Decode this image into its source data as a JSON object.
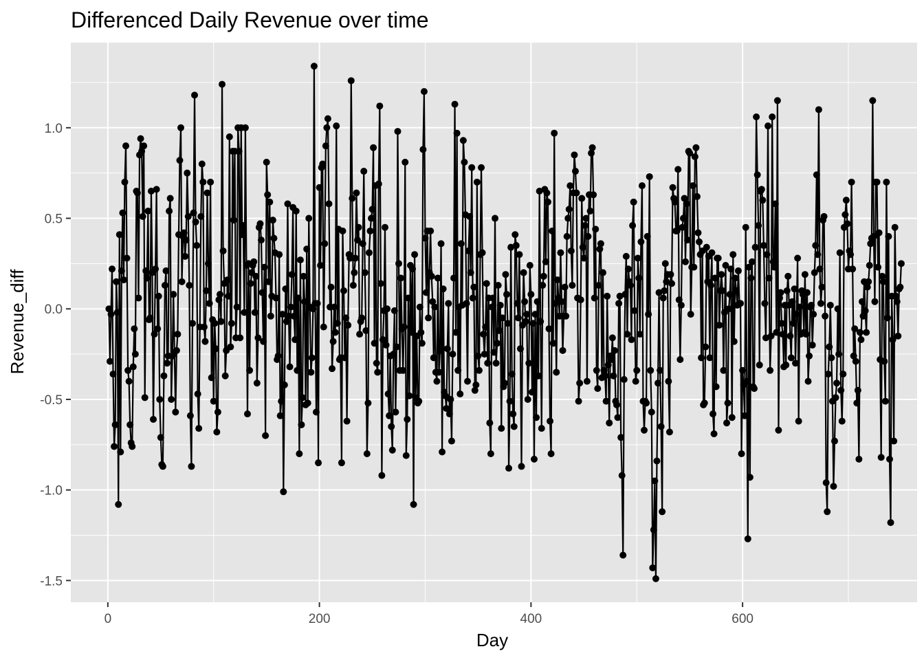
{
  "chart_data": {
    "type": "line",
    "title": "Differenced Daily Revenue over time",
    "xlabel": "Day",
    "ylabel": "Revenue_diff",
    "xlim": [
      -35,
      765
    ],
    "ylim": [
      -1.62,
      1.47
    ],
    "x_ticks": [
      0,
      200,
      400,
      600
    ],
    "x_tick_labels": [
      "0",
      "200",
      "400",
      "600"
    ],
    "y_ticks": [
      -1.5,
      -1.0,
      -0.5,
      0.0,
      0.5,
      1.0
    ],
    "y_tick_labels": [
      "-1.5",
      "-1.0",
      "-0.5",
      "0.0",
      "0.5",
      "1.0"
    ],
    "grid": true,
    "points_shown": true,
    "colors": {
      "panel": "#e5e5e5",
      "grid": "#ffffff",
      "series": "#000000"
    },
    "series": [
      {
        "x_start": 1,
        "x_step": 1,
        "values": [
          0.0,
          -0.29,
          -0.03,
          0.22,
          -0.36,
          -0.76,
          -0.64,
          0.15,
          -0.02,
          -1.08,
          0.41,
          -0.79,
          0.21,
          0.53,
          0.16,
          0.7,
          0.9,
          0.28,
          -0.34,
          -0.4,
          -0.64,
          -0.74,
          -0.76,
          -0.32,
          -0.11,
          -0.25,
          0.65,
          0.64,
          0.06,
          0.85,
          0.94,
          0.87,
          0.51,
          0.9,
          -0.49,
          0.21,
          0.17,
          0.54,
          -0.06,
          -0.05,
          0.65,
          0.2,
          -0.61,
          -0.14,
          0.22,
          0.66,
          -0.11,
          0.07,
          -0.5,
          -0.71,
          -0.86,
          -0.87,
          -0.37,
          0.13,
          0.21,
          -0.3,
          -0.26,
          0.54,
          0.61,
          -0.5,
          -0.26,
          0.08,
          -0.24,
          -0.57,
          -0.23,
          -0.14,
          0.41,
          0.82,
          1.0,
          0.15,
          0.4,
          0.42,
          0.29,
          0.38,
          0.75,
          0.51,
          0.13,
          -0.59,
          -0.87,
          -0.08,
          0.53,
          1.18,
          0.48,
          0.35,
          -0.47,
          -0.66,
          -0.1,
          0.51,
          0.8,
          0.7,
          -0.1,
          -0.18,
          0.1,
          0.64,
          0.25,
          0.03,
          0.7,
          -0.38,
          -0.06,
          -0.51,
          -0.08,
          -0.22,
          -0.68,
          -0.57,
          0.05,
          0.08,
          -0.07,
          1.24,
          0.32,
          0.14,
          -0.37,
          -0.23,
          0.16,
          0.07,
          0.95,
          -0.21,
          -0.08,
          0.87,
          0.49,
          0.87,
          -0.16,
          0.01,
          1.0,
          0.87,
          -0.16,
          1.0,
          0.41,
          0.46,
          -0.02,
          1.0,
          0.24,
          -0.58,
          0.25,
          -0.34,
          0.14,
          0.2,
          0.24,
          0.26,
          -0.02,
          0.18,
          -0.41,
          -0.16,
          0.45,
          0.47,
          0.38,
          0.09,
          -0.18,
          0.23,
          -0.7,
          0.81,
          0.63,
          0.15,
          0.59,
          -0.04,
          0.07,
          0.49,
          0.39,
          0.31,
          0.06,
          -0.28,
          -0.26,
          0.3,
          -0.59,
          -0.51,
          -0.03,
          -1.01,
          -0.42,
          0.11,
          -0.07,
          0.58,
          -0.04,
          -0.32,
          0.01,
          0.19,
          0.56,
          -0.04,
          -0.17,
          0.54,
          -0.34,
          0.06,
          -0.8,
          0.27,
          -0.64,
          -0.49,
          0.18,
          0.04,
          -0.53,
          0.33,
          -0.52,
          0.5,
          0.01,
          -0.35,
          -0.27,
          0.0,
          1.34,
          0.03,
          -0.57,
          0.03,
          -0.85,
          0.67,
          0.24,
          0.78,
          0.8,
          -0.1,
          0.36,
          0.9,
          1.0,
          1.05,
          0.58,
          0.01,
          0.12,
          -0.33,
          -0.18,
          0.01,
          -0.13,
          1.01,
          -0.08,
          0.44,
          -0.28,
          -0.27,
          -0.85,
          0.43,
          0.1,
          -0.27,
          -0.05,
          -0.62,
          -0.09,
          0.3,
          0.28,
          1.26,
          0.61,
          0.13,
          0.2,
          0.28,
          0.64,
          0.38,
          0.45,
          -0.14,
          -0.07,
          -0.05,
          0.36,
          0.76,
          0.2,
          -0.12,
          -0.8,
          -0.52,
          0.31,
          0.43,
          0.5,
          0.55,
          0.89,
          -0.19,
          0.68,
          -0.3,
          -0.35,
          0.69,
          1.12,
          0.14,
          -0.92,
          -0.17,
          -0.01,
          0.45,
          -0.2,
          0.0,
          -0.47,
          -0.59,
          -0.26,
          -0.65,
          -0.78,
          -0.25,
          -0.01,
          -0.57,
          -0.21,
          0.98,
          0.25,
          -0.34,
          0.17,
          -0.11,
          -0.34,
          -0.1,
          0.81,
          -0.81,
          -0.61,
          0.06,
          -0.48,
          0.24,
          -0.13,
          0.22,
          -1.08,
          0.3,
          -0.49,
          -0.15,
          -0.52,
          -0.51,
          0.01,
          -0.13,
          -0.19,
          0.88,
          1.2,
          0.39,
          0.09,
          0.43,
          -0.05,
          0.2,
          0.43,
          0.18,
          0.04,
          -0.27,
          0.01,
          -0.35,
          -0.4,
          0.17,
          -0.35,
          -0.23,
          0.36,
          -0.79,
          0.11,
          -0.46,
          -0.48,
          -0.55,
          -0.22,
          0.03,
          -0.58,
          -0.5,
          -0.73,
          -0.25,
          0.17,
          1.13,
          -0.13,
          0.97,
          -0.34,
          0.01,
          -0.47,
          0.36,
          0.02,
          0.93,
          0.81,
          0.52,
          0.03,
          -0.4,
          0.32,
          0.51,
          0.2,
          0.78,
          0.06,
          0.12,
          -0.45,
          -0.42,
          0.7,
          -0.26,
          -0.34,
          0.3,
          0.78,
          0.31,
          -0.14,
          -0.25,
          -0.1,
          0.14,
          -0.3,
          0.06,
          -0.63,
          -0.8,
          0.01,
          0.06,
          -0.24,
          0.5,
          -0.3,
          -0.19,
          0.13,
          -0.12,
          0.02,
          -0.66,
          -0.05,
          -0.43,
          -0.41,
          0.19,
          0.08,
          -0.08,
          -0.88,
          -0.51,
          0.34,
          -0.36,
          -0.58,
          -0.65,
          0.41,
          0.35,
          0.03,
          -0.05,
          0.3,
          -0.22,
          -0.87,
          -0.09,
          0.2,
          0.04,
          -0.07,
          -0.03,
          -0.5,
          -0.3,
          0.24,
          0.08,
          -0.46,
          -0.08,
          -0.83,
          -0.03,
          -0.6,
          0.04,
          -0.37,
          0.65,
          -0.07,
          -0.66,
          0.13,
          0.18,
          0.66,
          0.26,
          0.64,
          0.59,
          -0.11,
          -0.62,
          -0.8,
          0.43,
          -0.19,
          0.97,
          0.03,
          -0.35,
          0.16,
          0.06,
          -0.04,
          0.31,
          0.04,
          -0.23,
          -0.04,
          0.12,
          -0.04,
          0.4,
          0.5,
          0.55,
          0.68,
          0.32,
          0.13,
          0.64,
          0.85,
          0.76,
          0.64,
          0.06,
          -0.51,
          -0.41,
          0.05,
          0.61,
          0.34,
          0.28,
          0.46,
          0.5,
          -0.4,
          0.4,
          0.63,
          0.54,
          0.86,
          0.89,
          0.63,
          0.06,
          0.44,
          -0.34,
          -0.44,
          0.13,
          0.33,
          0.36,
          -0.38,
          0.2,
          -0.34,
          -0.37,
          -0.51,
          0.07,
          -0.31,
          -0.63,
          -0.26,
          -0.28,
          -0.16,
          -0.37,
          -0.23,
          -0.51,
          -0.53,
          -0.6,
          0.03,
          0.07,
          -0.71,
          -0.92,
          -1.36,
          -0.39,
          0.08,
          0.29,
          -0.14,
          0.22,
          0.15,
          0.13,
          -0.17,
          0.46,
          0.59,
          -0.01,
          -0.4,
          -0.34,
          0.28,
          0.17,
          -0.14,
          0.37,
          0.68,
          -0.51,
          -0.67,
          -0.51,
          -0.52,
          0.4,
          -0.03,
          0.73,
          -0.34,
          -0.57,
          -1.43,
          -1.22,
          -0.95,
          -1.49,
          -0.84,
          -0.41,
          0.09,
          -0.34,
          -0.65,
          -1.12,
          0.06,
          0.1,
          0.25,
          0.15,
          0.19,
          -0.4,
          -0.68,
          0.19,
          0.14,
          0.67,
          0.61,
          0.59,
          0.43,
          0.43,
          0.77,
          0.05,
          -0.28,
          0.02,
          0.45,
          0.5,
          0.61,
          0.26,
          0.58,
          0.38,
          0.87,
          0.86,
          -0.03,
          0.23,
          0.68,
          0.23,
          0.84,
          0.89,
          0.62,
          0.42,
          0.37,
          0.3,
          -0.27,
          0.32,
          -0.53,
          -0.52,
          -0.21,
          0.34,
          0.15,
          0.29,
          -0.27,
          0.13,
          0.31,
          -0.58,
          -0.69,
          0.17,
          -0.43,
          0.28,
          0.28,
          -0.09,
          0.1,
          0.19,
          0.1,
          -0.34,
          -0.02,
          0.24,
          -0.63,
          -0.52,
          0.0,
          0.08,
          0.22,
          -0.6,
          0.3,
          -0.18,
          0.17,
          0.1,
          0.02,
          0.21,
          0.03,
          0.03,
          -0.8,
          -0.34,
          -0.42,
          -0.59,
          0.45,
          -0.4,
          -1.27,
          0.23,
          -0.93,
          0.17,
          0.26,
          -0.43,
          -0.44,
          0.34,
          1.06,
          0.74,
          0.46,
          -0.31,
          0.65,
          0.66,
          0.6,
          0.35,
          0.03,
          -0.16,
          0.3,
          1.01,
          0.17,
          -0.34,
          -0.15,
          1.06,
          0.26,
          0.23,
          0.58,
          -0.13,
          1.15,
          -0.67,
          0.06,
          0.09,
          -0.08,
          -0.14,
          -0.32,
          0.02,
          -0.31,
          0.1,
          0.18,
          0.02,
          -0.15,
          -0.27,
          0.04,
          -0.08,
          0.11,
          -0.3,
          -0.03,
          0.28,
          -0.62,
          0.01,
          -0.14,
          0.1,
          0.08,
          -0.13,
          0.19,
          -0.14,
          0.09,
          -0.4,
          -0.26,
          0.01,
          0.02,
          -0.2,
          -0.03,
          0.2,
          0.35,
          0.74,
          0.3,
          1.1,
          0.22,
          0.03,
          0.12,
          0.49,
          0.51,
          -0.04,
          -0.96,
          -1.12,
          -0.36,
          -0.21,
          0.02,
          -0.27,
          -0.51,
          -0.98,
          -0.73,
          -0.49,
          -0.41,
          0.0,
          -0.25,
          0.31,
          -0.45,
          -0.62,
          -0.36,
          0.45,
          0.52,
          0.6,
          0.47,
          0.22,
          0.32,
          0.3,
          0.7,
          0.22,
          -0.26,
          -0.11,
          -0.29,
          -0.52,
          -0.45,
          -0.83,
          -0.13,
          -0.17,
          0.04,
          -0.04,
          0.15,
          -0.01,
          -0.13,
          0.12,
          0.15,
          0.24,
          0.36,
          0.39,
          1.15,
          0.4,
          0.04,
          0.7,
          0.7,
          0.23,
          0.42,
          -0.28,
          -0.82,
          0.18,
          0.15,
          -0.29,
          -0.51,
          0.7,
          -0.05,
          0.4,
          -0.83,
          -1.18,
          0.07,
          -0.17,
          -0.73,
          0.45,
          0.07,
          0.04,
          -0.15,
          0.11,
          0.12,
          0.25
        ]
      }
    ]
  }
}
